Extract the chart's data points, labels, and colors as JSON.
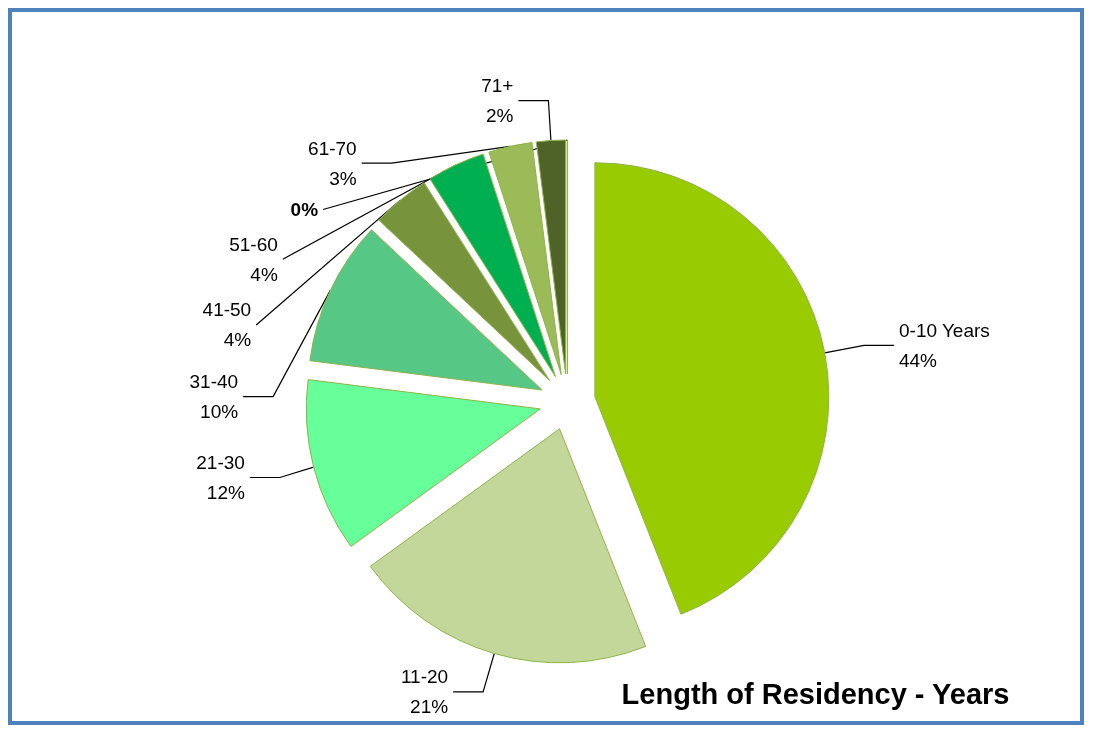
{
  "chart_data": {
    "type": "pie",
    "title": "Length of Residency - Years",
    "categories": [
      "0-10 Years",
      "11-20",
      "21-30",
      "31-40",
      "41-50",
      "51-60",
      "61-70",
      "71+",
      null
    ],
    "values": [
      44,
      21,
      12,
      10,
      4,
      4,
      3,
      2,
      0
    ],
    "value_labels": [
      "44%",
      "21%",
      "12%",
      "10%",
      "4%",
      "4%",
      "3%",
      "2%",
      "0%"
    ],
    "colors": [
      "#99cc00",
      "#c4d79b",
      "#66ff99",
      "#57c785",
      "#77933c",
      "#00b050",
      "#9bbb59",
      "#4f6228",
      "#c4d79b"
    ]
  }
}
